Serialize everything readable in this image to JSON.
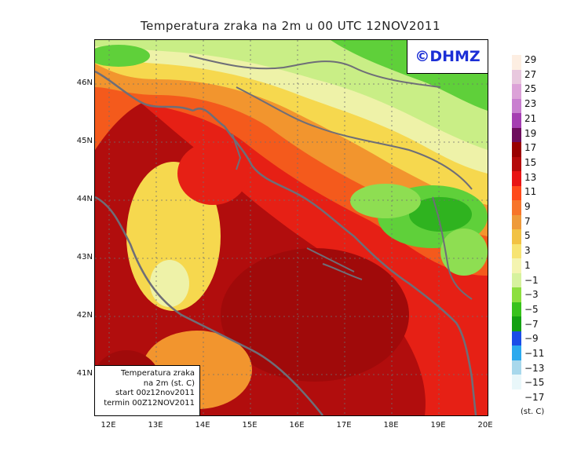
{
  "title": "Temperatura zraka na 2m u 00 UTC 12NOV2011",
  "logo": "©DHMZ",
  "info_box": {
    "line1": "Temperatura zraka",
    "line2": "na 2m (st. C)",
    "line3": "start 00z12nov2011",
    "line4": "termin 00Z12NOV2011"
  },
  "lat_labels": [
    "46N",
    "45N",
    "44N",
    "43N",
    "42N",
    "41N"
  ],
  "lon_labels": [
    "12E",
    "13E",
    "14E",
    "15E",
    "16E",
    "17E",
    "18E",
    "19E",
    "20E"
  ],
  "colorbar": {
    "unit": "(st. C)",
    "labels": [
      "29",
      "27",
      "25",
      "23",
      "21",
      "19",
      "17",
      "15",
      "13",
      "11",
      "9",
      "7",
      "5",
      "3",
      "1",
      "−1",
      "−3",
      "−5",
      "−7",
      "−9",
      "−11",
      "−13",
      "−15",
      "−17"
    ],
    "colors": [
      "#fdeee2",
      "#e8c8de",
      "#dca2d8",
      "#c97fd0",
      "#a53eb2",
      "#6e0d5d",
      "#990000",
      "#b50a0a",
      "#e81414",
      "#ff4a1a",
      "#f7752a",
      "#ee9a3a",
      "#f2c244",
      "#f7e472",
      "#f4f4b0",
      "#d6f29e",
      "#8cdf3e",
      "#38c21c",
      "#13a012",
      "#1b4de7",
      "#2ba9ee",
      "#a8d8ec",
      "#e9f7fa"
    ]
  }
}
